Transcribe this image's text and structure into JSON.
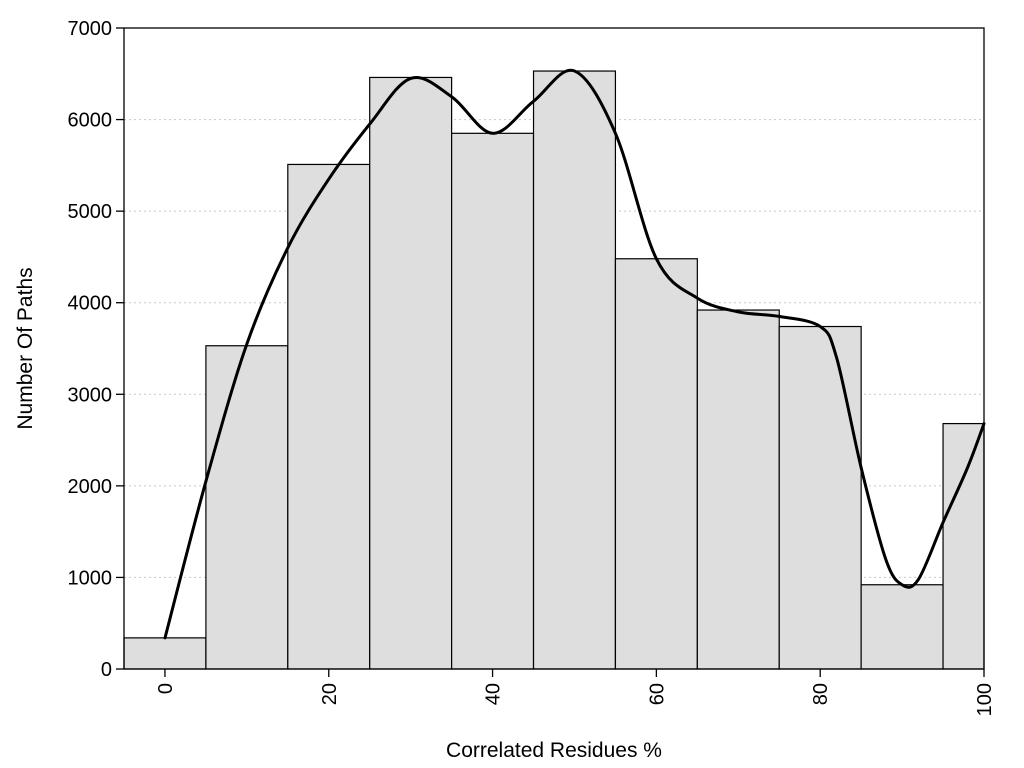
{
  "chart_data": {
    "type": "bar",
    "xlabel": "Correlated Residues %",
    "ylabel": "Number Of Paths",
    "xlim": [
      -5,
      100
    ],
    "ylim": [
      0,
      7000
    ],
    "grid": true,
    "bin_width": 10,
    "bins": [
      {
        "center": 0,
        "value": 340
      },
      {
        "center": 10,
        "value": 3530
      },
      {
        "center": 20,
        "value": 5510
      },
      {
        "center": 30,
        "value": 6460
      },
      {
        "center": 40,
        "value": 5850
      },
      {
        "center": 50,
        "value": 6530
      },
      {
        "center": 60,
        "value": 4480
      },
      {
        "center": 70,
        "value": 3920
      },
      {
        "center": 80,
        "value": 3740
      },
      {
        "center": 90,
        "value": 920
      },
      {
        "center": 100,
        "value": 2680
      }
    ],
    "x_ticks": [
      "0",
      "20",
      "40",
      "60",
      "80",
      "100"
    ],
    "y_ticks": [
      "0",
      "1000",
      "2000",
      "3000",
      "4000",
      "5000",
      "6000",
      "7000"
    ],
    "curve": {
      "type": "smooth-line",
      "x": [
        0,
        5,
        10,
        15,
        20,
        25,
        30,
        35,
        40,
        45,
        50,
        55,
        60,
        65,
        70,
        75,
        80,
        82,
        85,
        88,
        90,
        92,
        95,
        98,
        100
      ],
      "y": [
        340,
        2050,
        3550,
        4600,
        5350,
        5950,
        6450,
        6250,
        5850,
        6200,
        6530,
        5850,
        4480,
        4050,
        3900,
        3850,
        3740,
        3400,
        2200,
        1200,
        920,
        980,
        1600,
        2200,
        2680
      ]
    }
  }
}
